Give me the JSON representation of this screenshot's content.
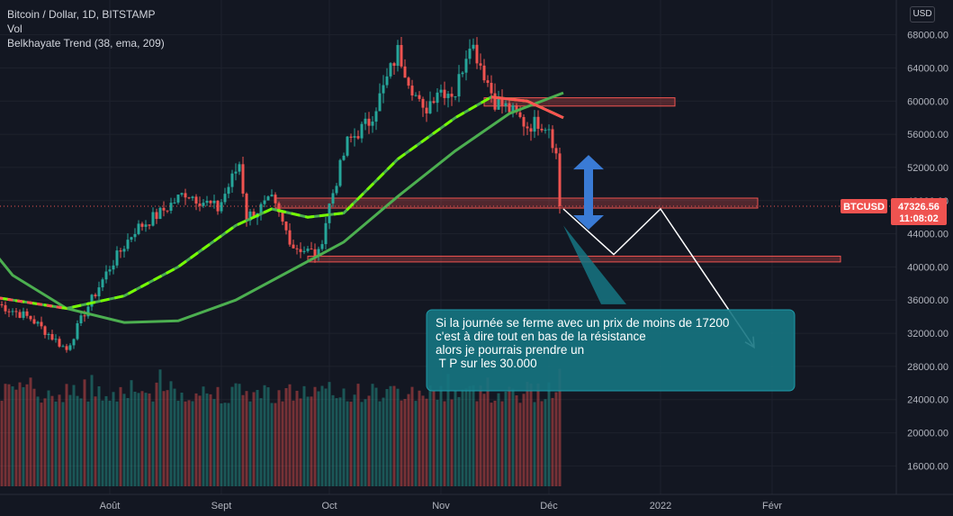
{
  "legend": {
    "symbol": "Bitcoin / Dollar, 1D, BITSTAMP",
    "volume": "Vol",
    "indicator": "Belkhayate Trend (38, ema, 209)"
  },
  "currency_button": "USD",
  "price_tag": {
    "symbol": "BTCUSD",
    "price": "47326.56",
    "countdown": "11:08:02"
  },
  "annotation": {
    "lines": [
      "Si la journée se ferme avec un prix de moins de 17200",
      "c'est à dire tout en bas de la résistance",
      "alors je pourrais prendre un",
      " T P sur les 30.000"
    ]
  },
  "colors": {
    "up": "#26a69a",
    "down": "#ef5350",
    "trend_slow": "#4caf50",
    "trend_fast": "#76ff03",
    "note_bg": "#167682",
    "arrow": "#3a7bd5"
  },
  "chart_data": {
    "type": "candlestick",
    "title": "Bitcoin / Dollar, 1D, BITSTAMP",
    "y_ticks": [
      16000,
      20000,
      24000,
      28000,
      32000,
      36000,
      40000,
      44000,
      48000,
      52000,
      56000,
      60000,
      64000,
      68000
    ],
    "y_tick_labels": [
      "16000.00",
      "20000.00",
      "24000.00",
      "28000.00",
      "32000.00",
      "36000.00",
      "40000.00",
      "44000.00",
      "48000.00",
      "52000.00",
      "56000.00",
      "60000.00",
      "64000.00",
      "68000.00"
    ],
    "ylim": [
      13000,
      70000
    ],
    "x_ticks": [
      {
        "date": "2021-08-01",
        "label": "Août"
      },
      {
        "date": "2021-09-01",
        "label": "Sept"
      },
      {
        "date": "2021-10-01",
        "label": "Oct"
      },
      {
        "date": "2021-11-01",
        "label": "Nov"
      },
      {
        "date": "2021-12-01",
        "label": "Déc"
      },
      {
        "date": "2022-01-01",
        "label": "2022"
      },
      {
        "date": "2022-02-01",
        "label": "Févr"
      }
    ],
    "price_path": [
      [
        "2021-07-01",
        35500
      ],
      [
        "2021-07-10",
        33800
      ],
      [
        "2021-07-20",
        30000
      ],
      [
        "2021-07-25",
        34500
      ],
      [
        "2021-08-01",
        40000
      ],
      [
        "2021-08-08",
        44500
      ],
      [
        "2021-08-15",
        46500
      ],
      [
        "2021-08-22",
        49000
      ],
      [
        "2021-08-31",
        47000
      ],
      [
        "2021-09-06",
        52500
      ],
      [
        "2021-09-08",
        46000
      ],
      [
        "2021-09-15",
        48000
      ],
      [
        "2021-09-21",
        42500
      ],
      [
        "2021-09-28",
        41500
      ],
      [
        "2021-10-01",
        47500
      ],
      [
        "2021-10-06",
        55000
      ],
      [
        "2021-10-12",
        57500
      ],
      [
        "2021-10-16",
        61500
      ],
      [
        "2021-10-20",
        66000
      ],
      [
        "2021-10-27",
        58500
      ],
      [
        "2021-10-31",
        61500
      ],
      [
        "2021-11-05",
        61000
      ],
      [
        "2021-11-09",
        67500
      ],
      [
        "2021-11-12",
        64500
      ],
      [
        "2021-11-16",
        60000
      ],
      [
        "2021-11-20",
        59000
      ],
      [
        "2021-11-25",
        57000
      ],
      [
        "2021-11-28",
        57500
      ],
      [
        "2021-12-01",
        57000
      ],
      [
        "2021-12-03",
        53500
      ],
      [
        "2021-12-04",
        47326
      ]
    ],
    "volume_range": [
      0,
      28000
    ],
    "last_price": 47326.56,
    "trend_slow_path": [
      [
        "2021-06-20",
        47000
      ],
      [
        "2021-07-05",
        39000
      ],
      [
        "2021-07-20",
        35000
      ],
      [
        "2021-08-05",
        33300
      ],
      [
        "2021-08-20",
        33500
      ],
      [
        "2021-09-05",
        36000
      ],
      [
        "2021-09-20",
        39500
      ],
      [
        "2021-10-05",
        43000
      ],
      [
        "2021-10-20",
        48500
      ],
      [
        "2021-11-05",
        54000
      ],
      [
        "2021-11-20",
        58500
      ],
      [
        "2021-12-05",
        61000
      ]
    ],
    "trend_fast_path": [
      [
        "2021-06-20",
        37000
      ],
      [
        "2021-07-05",
        36000
      ],
      [
        "2021-07-20",
        35000
      ],
      [
        "2021-08-05",
        36500
      ],
      [
        "2021-08-20",
        40000
      ],
      [
        "2021-09-05",
        45000
      ],
      [
        "2021-09-15",
        47000
      ],
      [
        "2021-09-25",
        46000
      ],
      [
        "2021-10-05",
        46500
      ],
      [
        "2021-10-20",
        53000
      ],
      [
        "2021-11-05",
        58000
      ],
      [
        "2021-11-15",
        60500
      ],
      [
        "2021-11-25",
        60000
      ],
      [
        "2021-12-05",
        58000
      ]
    ],
    "zones": [
      {
        "from": "2021-11-13",
        "to": "2022-01-05",
        "low": 59400,
        "high": 60400
      },
      {
        "from": "2021-09-16",
        "to": "2022-01-28",
        "low": 47100,
        "high": 48300
      },
      {
        "from": "2021-09-25",
        "to": "2022-02-20",
        "low": 40600,
        "high": 41300
      }
    ],
    "projection_path": [
      [
        "2021-12-05",
        47000
      ],
      [
        "2021-12-19",
        41500
      ],
      [
        "2022-01-01",
        47000
      ],
      [
        "2022-01-27",
        30300
      ]
    ],
    "double_arrow": {
      "date": "2021-12-12",
      "from": 44500,
      "to": 53500
    },
    "pointer": {
      "from_date": "2021-12-05",
      "from_price": 45000,
      "to_date": "2021-12-19",
      "to_price": 35500
    }
  }
}
